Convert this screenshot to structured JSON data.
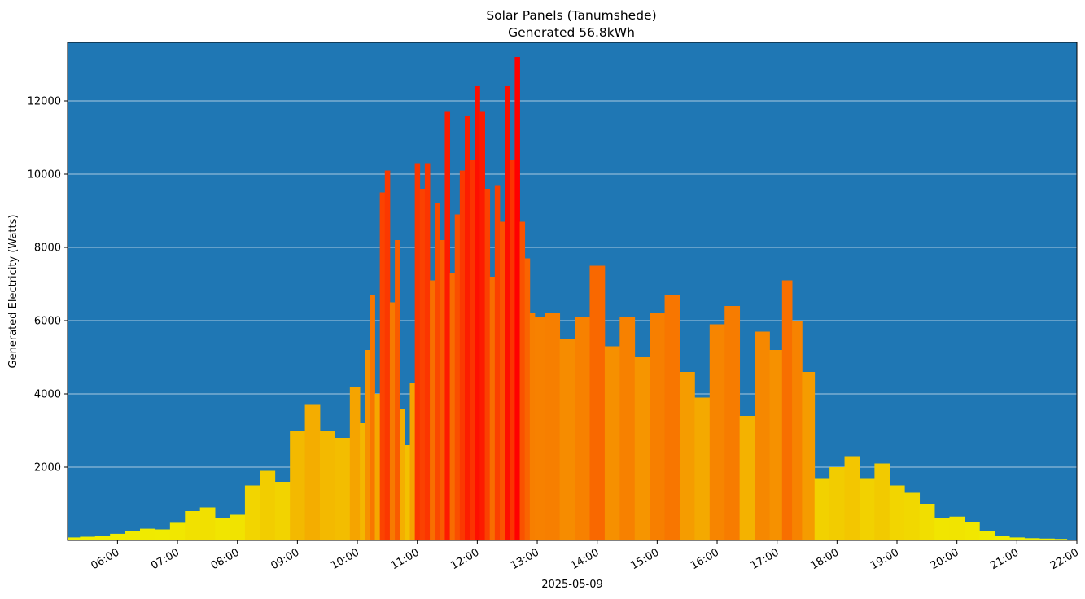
{
  "chart_data": {
    "type": "bar",
    "title": "Solar Panels (Tanumshede)",
    "subtitle": "Generated 56.8kWh",
    "xlabel": "2025-05-09",
    "ylabel": "Generated Electricity (Watts)",
    "ylim": [
      0,
      13600
    ],
    "xlim": [
      "05:10",
      "22:00"
    ],
    "grid": "horizontal",
    "colors": {
      "background": "#1f77b4",
      "grid": "#d9e6f0",
      "low": "#f0f000",
      "high": "#ff0000"
    },
    "y_ticks": [
      2000,
      4000,
      6000,
      8000,
      10000,
      12000
    ],
    "x_ticks": [
      "06:00",
      "07:00",
      "08:00",
      "09:00",
      "10:00",
      "11:00",
      "12:00",
      "13:00",
      "14:00",
      "15:00",
      "16:00",
      "17:00",
      "18:00",
      "19:00",
      "20:00",
      "21:00",
      "22:00"
    ],
    "series": [
      {
        "x": [
          "05:15",
          "05:30",
          "05:45",
          "06:00",
          "06:15",
          "06:30",
          "06:45",
          "07:00",
          "07:15",
          "07:30",
          "07:45",
          "08:00",
          "08:15",
          "08:30",
          "08:45",
          "09:00",
          "09:15",
          "09:30",
          "09:45",
          "10:00",
          "10:05",
          "10:10",
          "10:15",
          "10:20",
          "10:25",
          "10:30",
          "10:35",
          "10:40",
          "10:45",
          "10:50",
          "10:55",
          "11:00",
          "11:05",
          "11:10",
          "11:15",
          "11:20",
          "11:25",
          "11:30",
          "11:35",
          "11:40",
          "11:45",
          "11:50",
          "11:55",
          "12:00",
          "12:05",
          "12:10",
          "12:15",
          "12:20",
          "12:25",
          "12:30",
          "12:35",
          "12:40",
          "12:45",
          "12:50",
          "12:55",
          "13:00",
          "13:15",
          "13:30",
          "13:45",
          "14:00",
          "14:15",
          "14:30",
          "14:45",
          "15:00",
          "15:15",
          "15:30",
          "15:45",
          "16:00",
          "16:15",
          "16:30",
          "16:45",
          "17:00",
          "17:10",
          "17:20",
          "17:30",
          "17:45",
          "18:00",
          "18:15",
          "18:30",
          "18:45",
          "19:00",
          "19:15",
          "19:30",
          "19:45",
          "20:00",
          "20:15",
          "20:30",
          "20:45",
          "21:00",
          "21:15",
          "21:30",
          "21:45"
        ],
        "values": [
          80,
          100,
          120,
          180,
          250,
          320,
          300,
          480,
          800,
          900,
          620,
          700,
          1500,
          1900,
          1600,
          3000,
          3700,
          3000,
          2800,
          4200,
          3200,
          5200,
          6700,
          4000,
          9500,
          10100,
          6500,
          8200,
          3600,
          2600,
          4300,
          10300,
          9600,
          10300,
          7100,
          9200,
          8200,
          11700,
          7300,
          8900,
          10100,
          11600,
          10400,
          12400,
          11700,
          9600,
          7200,
          9700,
          8700,
          12400,
          10400,
          13200,
          8700,
          7700,
          6200,
          6100,
          6200,
          5500,
          6100,
          7500,
          5300,
          6100,
          5000,
          6200,
          6700,
          4600,
          3900,
          5900,
          6400,
          3400,
          5700,
          5200,
          7100,
          6000,
          4600,
          1700,
          2000,
          2300,
          1700,
          2100,
          1500,
          1300,
          1000,
          600,
          650,
          500,
          250,
          130,
          80,
          60,
          50,
          40
        ]
      }
    ]
  }
}
